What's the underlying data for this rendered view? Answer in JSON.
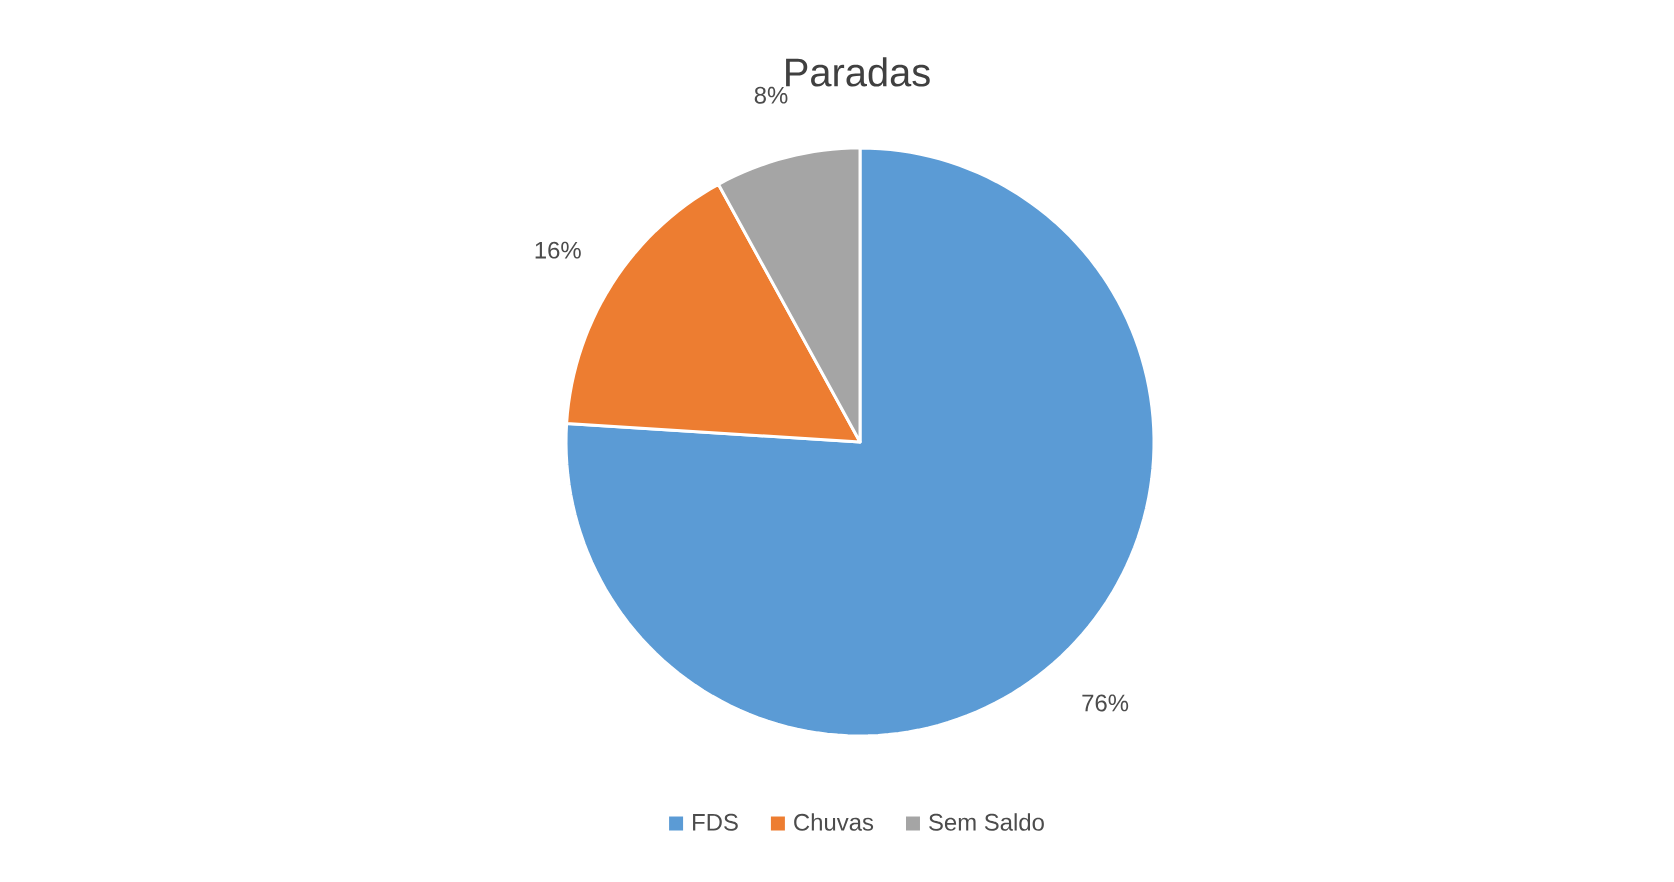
{
  "chart_data": {
    "type": "pie",
    "title": "Paradas",
    "categories": [
      "FDS",
      "Chuvas",
      "Sem Saldo"
    ],
    "values": [
      76,
      16,
      8
    ],
    "value_labels": [
      "76%",
      "16%",
      "8%"
    ],
    "colors": [
      "#5b9bd5",
      "#ed7d31",
      "#a5a5a5"
    ],
    "legend": "bottom"
  }
}
